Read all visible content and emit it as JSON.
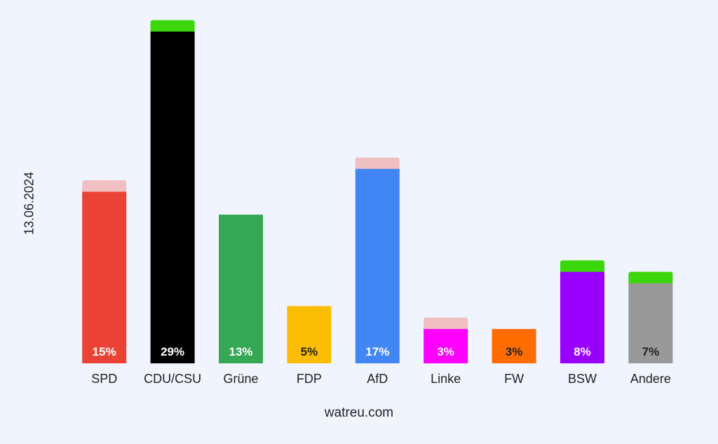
{
  "chart_data": {
    "type": "bar",
    "ylabel": "13.06.2024",
    "source": "watreu.com",
    "ylim": [
      0,
      29.8
    ],
    "categories": [
      "SPD",
      "CDU/CSU",
      "Grüne",
      "FDP",
      "AfD",
      "Linke",
      "FW",
      "BSW",
      "Andere"
    ],
    "values": [
      15,
      29,
      13,
      5,
      17,
      3,
      3,
      8,
      7
    ],
    "labels": [
      "15%",
      "29%",
      "13%",
      "5%",
      "17%",
      "3%",
      "3%",
      "8%",
      "7%"
    ],
    "change": [
      -1,
      1,
      0,
      0,
      -1,
      -1,
      0,
      1,
      1
    ],
    "colors": [
      "#ea4335",
      "#000000",
      "#34a853",
      "#fbbc04",
      "#4285f4",
      "#ff00ff",
      "#ff6d01",
      "#9900ff",
      "#999999"
    ],
    "label_colors": [
      "#ffffff",
      "#ffffff",
      "#ffffff",
      "#222222",
      "#ffffff",
      "#ffffff",
      "#222222",
      "#ffffff",
      "#222222"
    ],
    "gain_color": "#3cd70a",
    "loss_color": "#f0bfc2"
  }
}
